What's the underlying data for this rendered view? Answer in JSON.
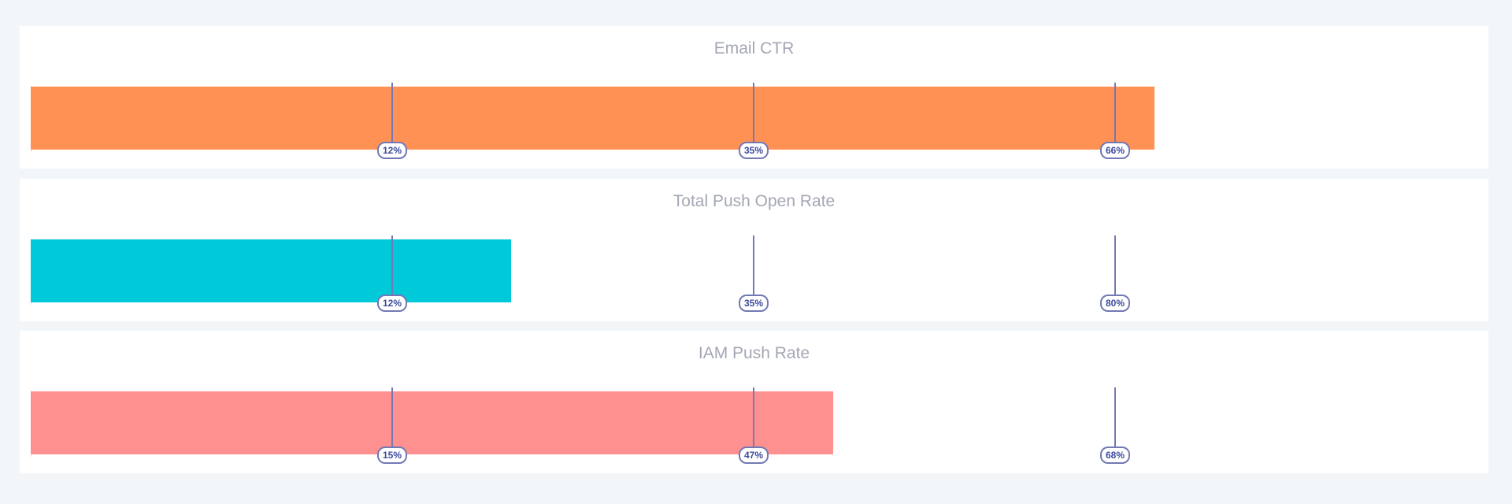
{
  "chart_data": [
    {
      "type": "bar",
      "title": "Email CTR",
      "fill": 0.777,
      "color": "#ff9155",
      "ticks": [
        "12%",
        "35%",
        "66%"
      ]
    },
    {
      "type": "bar",
      "title": "Total Push Open Rate",
      "fill": 0.332,
      "color": "#00c9d9",
      "ticks": [
        "12%",
        "35%",
        "80%"
      ]
    },
    {
      "type": "bar",
      "title": "IAM Push Rate",
      "fill": 0.555,
      "color": "#ff9090",
      "ticks": [
        "15%",
        "47%",
        "68%"
      ]
    }
  ]
}
